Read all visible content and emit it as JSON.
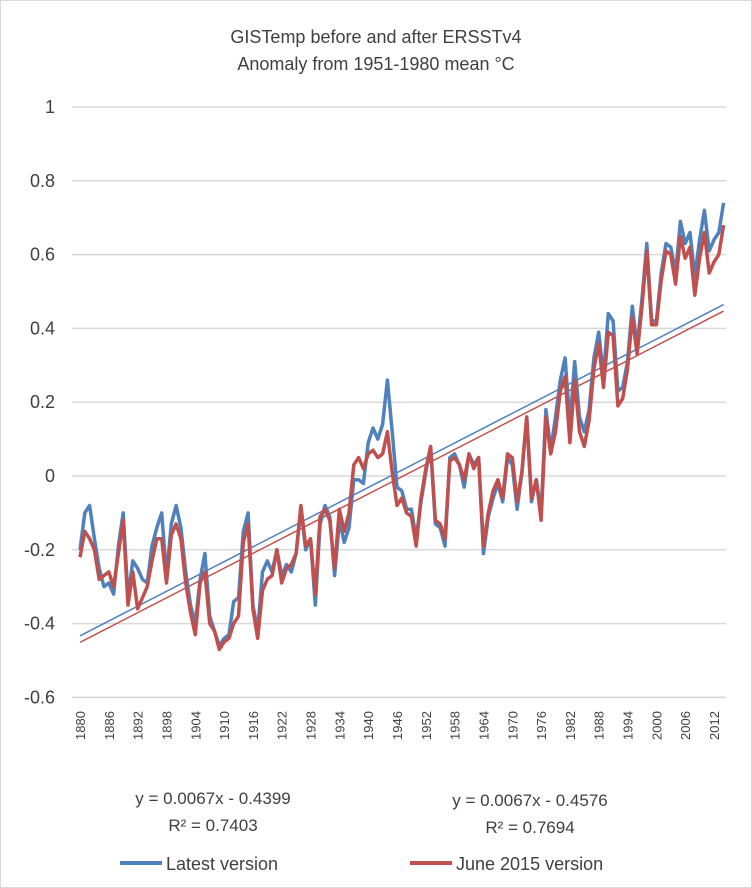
{
  "chart_data": {
    "type": "line",
    "title": [
      "GISTemp before and after ERSSTv4",
      "Anomaly from 1951-1980 mean °C"
    ],
    "xlabel": "",
    "ylabel": "",
    "ylim": [
      -0.6,
      1
    ],
    "yticks": [
      "1",
      "0.8",
      "0.6",
      "0.4",
      "0.2",
      "0",
      "-0.2",
      "-0.4",
      "-0.6"
    ],
    "ytick_values": [
      1,
      0.8,
      0.6,
      0.4,
      0.2,
      0,
      -0.2,
      -0.4,
      -0.6
    ],
    "xticks": [
      "1880",
      "1886",
      "1892",
      "1898",
      "1904",
      "1910",
      "1916",
      "1922",
      "1928",
      "1934",
      "1940",
      "1946",
      "1952",
      "1958",
      "1964",
      "1970",
      "1976",
      "1982",
      "1988",
      "1994",
      "2000",
      "2006",
      "2012"
    ],
    "grid": true,
    "legend_position": "bottom",
    "x_start": 1880,
    "x_end": 2014,
    "series": [
      {
        "name": "Latest version",
        "color": "#4f81bd",
        "values": [
          -0.2,
          -0.1,
          -0.08,
          -0.17,
          -0.25,
          -0.3,
          -0.29,
          -0.32,
          -0.19,
          -0.1,
          -0.33,
          -0.23,
          -0.25,
          -0.28,
          -0.29,
          -0.19,
          -0.14,
          -0.1,
          -0.27,
          -0.13,
          -0.08,
          -0.14,
          -0.26,
          -0.35,
          -0.4,
          -0.28,
          -0.21,
          -0.38,
          -0.42,
          -0.46,
          -0.44,
          -0.43,
          -0.34,
          -0.33,
          -0.15,
          -0.1,
          -0.35,
          -0.42,
          -0.26,
          -0.23,
          -0.26,
          -0.2,
          -0.27,
          -0.24,
          -0.26,
          -0.21,
          -0.09,
          -0.2,
          -0.17,
          -0.35,
          -0.13,
          -0.08,
          -0.11,
          -0.27,
          -0.12,
          -0.18,
          -0.14,
          -0.01,
          -0.01,
          -0.02,
          0.09,
          0.13,
          0.1,
          0.14,
          0.26,
          0.12,
          -0.03,
          -0.04,
          -0.09,
          -0.09,
          -0.17,
          -0.07,
          0.01,
          0.08,
          -0.13,
          -0.14,
          -0.19,
          0.05,
          0.06,
          0.03,
          -0.03,
          0.06,
          0.03,
          0.05,
          -0.21,
          -0.11,
          -0.06,
          -0.02,
          -0.07,
          0.05,
          0.03,
          -0.09,
          0.01,
          0.16,
          -0.07,
          -0.01,
          -0.1,
          0.18,
          0.07,
          0.16,
          0.26,
          0.32,
          0.14,
          0.31,
          0.16,
          0.12,
          0.18,
          0.32,
          0.39,
          0.27,
          0.44,
          0.42,
          0.23,
          0.24,
          0.31,
          0.46,
          0.35,
          0.48,
          0.63,
          0.42,
          0.42,
          0.55,
          0.63,
          0.62,
          0.55,
          0.69,
          0.63,
          0.66,
          0.54,
          0.64,
          0.72,
          0.61,
          0.64,
          0.66,
          0.74
        ],
        "trendline": {
          "slope": 0.0067,
          "intercept": -0.4399,
          "label": "y = 0.0067x - 0.4399",
          "r2_label": "R² = 0.7403"
        }
      },
      {
        "name": "June 2015 version",
        "color": "#c0504d",
        "values": [
          -0.22,
          -0.15,
          -0.17,
          -0.2,
          -0.28,
          -0.27,
          -0.26,
          -0.3,
          -0.21,
          -0.12,
          -0.35,
          -0.26,
          -0.36,
          -0.33,
          -0.3,
          -0.23,
          -0.17,
          -0.17,
          -0.29,
          -0.16,
          -0.13,
          -0.17,
          -0.29,
          -0.37,
          -0.43,
          -0.29,
          -0.26,
          -0.4,
          -0.42,
          -0.47,
          -0.45,
          -0.44,
          -0.4,
          -0.38,
          -0.18,
          -0.13,
          -0.36,
          -0.44,
          -0.31,
          -0.28,
          -0.27,
          -0.2,
          -0.29,
          -0.25,
          -0.24,
          -0.21,
          -0.08,
          -0.19,
          -0.17,
          -0.32,
          -0.11,
          -0.09,
          -0.12,
          -0.25,
          -0.09,
          -0.15,
          -0.1,
          0.03,
          0.05,
          0.02,
          0.06,
          0.07,
          0.05,
          0.06,
          0.12,
          0.01,
          -0.08,
          -0.06,
          -0.1,
          -0.11,
          -0.19,
          -0.06,
          0.02,
          0.08,
          -0.12,
          -0.13,
          -0.17,
          0.04,
          0.05,
          0.03,
          -0.01,
          0.06,
          0.02,
          0.05,
          -0.19,
          -0.1,
          -0.04,
          -0.01,
          -0.06,
          0.06,
          0.05,
          -0.07,
          0.01,
          0.16,
          -0.06,
          -0.01,
          -0.12,
          0.16,
          0.06,
          0.12,
          0.23,
          0.27,
          0.09,
          0.26,
          0.12,
          0.08,
          0.15,
          0.29,
          0.36,
          0.24,
          0.39,
          0.38,
          0.19,
          0.21,
          0.29,
          0.43,
          0.33,
          0.46,
          0.61,
          0.41,
          0.41,
          0.53,
          0.61,
          0.6,
          0.52,
          0.65,
          0.59,
          0.62,
          0.49,
          0.59,
          0.66,
          0.55,
          0.58,
          0.6,
          0.68
        ],
        "trendline": {
          "slope": 0.0067,
          "intercept": -0.4576,
          "label": "y = 0.0067x - 0.4576",
          "r2_label": "R² = 0.7694"
        }
      }
    ]
  }
}
